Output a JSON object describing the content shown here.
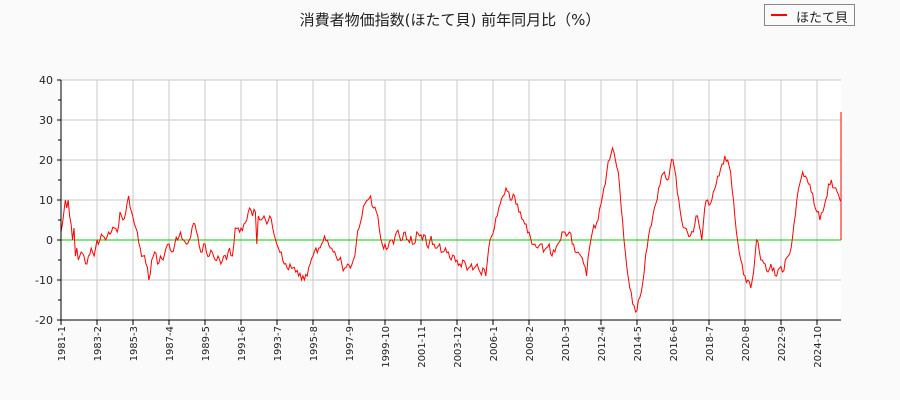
{
  "chart_data": {
    "type": "line",
    "title": "消費者物価指数(ほたて貝) 前年同月比（%）",
    "xlabel": "",
    "ylabel": "",
    "ylim": [
      -20,
      40
    ],
    "yticks": [
      40,
      30,
      20,
      10,
      0,
      -10,
      -20
    ],
    "xtick_labels": [
      "1981-1",
      "1983-2",
      "1985-3",
      "1987-4",
      "1989-5",
      "1991-6",
      "1993-7",
      "1995-8",
      "1997-9",
      "1999-10",
      "2001-11",
      "2003-12",
      "2006-1",
      "2008-2",
      "2010-3",
      "2012-4",
      "2014-5",
      "2016-6",
      "2018-7",
      "2020-8",
      "2022-9",
      "2024-10"
    ],
    "grid": true,
    "legend": {
      "position": "top-right",
      "entries": [
        "ほたて貝"
      ]
    },
    "reference_line": {
      "y": 0,
      "color": "#00cc00"
    },
    "series": [
      {
        "name": "ほたて貝",
        "color": "#ff0000",
        "points_month_value": [
          [
            0,
            2
          ],
          [
            1,
            4
          ],
          [
            2,
            7
          ],
          [
            3,
            10
          ],
          [
            4,
            8
          ],
          [
            5,
            10
          ],
          [
            6,
            6
          ],
          [
            7,
            4
          ],
          [
            8,
            0
          ],
          [
            9,
            3
          ],
          [
            10,
            -4
          ],
          [
            11,
            -2
          ],
          [
            12,
            -5
          ],
          [
            14,
            -3
          ],
          [
            16,
            -4
          ],
          [
            18,
            -6
          ],
          [
            19,
            -4
          ],
          [
            21,
            -2
          ],
          [
            23,
            -4
          ],
          [
            25,
            0
          ],
          [
            27,
            0
          ],
          [
            29,
            1
          ],
          [
            31,
            0
          ],
          [
            33,
            2
          ],
          [
            35,
            2
          ],
          [
            37,
            3
          ],
          [
            39,
            2
          ],
          [
            41,
            7
          ],
          [
            43,
            5
          ],
          [
            45,
            7
          ],
          [
            47,
            11
          ],
          [
            49,
            7
          ],
          [
            51,
            4
          ],
          [
            53,
            2
          ],
          [
            55,
            -2
          ],
          [
            57,
            -4
          ],
          [
            59,
            -6
          ],
          [
            61,
            -10
          ],
          [
            63,
            -5
          ],
          [
            65,
            -3
          ],
          [
            67,
            -6
          ],
          [
            69,
            -4
          ],
          [
            71,
            -5
          ],
          [
            73,
            -2
          ],
          [
            75,
            -1
          ],
          [
            77,
            -3
          ],
          [
            79,
            -1
          ],
          [
            81,
            0
          ],
          [
            83,
            2
          ],
          [
            85,
            0
          ],
          [
            87,
            -1
          ],
          [
            89,
            0
          ],
          [
            91,
            3
          ],
          [
            93,
            4
          ],
          [
            95,
            1
          ],
          [
            97,
            -3
          ],
          [
            99,
            -1
          ],
          [
            101,
            -3
          ],
          [
            103,
            -4
          ],
          [
            105,
            -3
          ],
          [
            107,
            -5
          ],
          [
            109,
            -4
          ],
          [
            111,
            -6
          ],
          [
            113,
            -4
          ],
          [
            115,
            -5
          ],
          [
            117,
            -2
          ],
          [
            119,
            -4
          ],
          [
            121,
            3
          ],
          [
            123,
            3
          ],
          [
            125,
            3
          ],
          [
            127,
            4
          ],
          [
            129,
            5
          ],
          [
            131,
            8
          ],
          [
            133,
            6
          ],
          [
            135,
            7
          ],
          [
            136,
            -1
          ],
          [
            137,
            6
          ],
          [
            139,
            5
          ],
          [
            141,
            6
          ],
          [
            143,
            4
          ],
          [
            145,
            6
          ],
          [
            147,
            3
          ],
          [
            149,
            0
          ],
          [
            151,
            -2
          ],
          [
            153,
            -3
          ],
          [
            155,
            -6
          ],
          [
            157,
            -7
          ],
          [
            159,
            -6
          ],
          [
            161,
            -7
          ],
          [
            163,
            -8
          ],
          [
            165,
            -9
          ],
          [
            167,
            -10
          ],
          [
            169,
            -10
          ],
          [
            171,
            -9
          ],
          [
            173,
            -6
          ],
          [
            175,
            -4
          ],
          [
            177,
            -2
          ],
          [
            179,
            -2
          ],
          [
            181,
            -1
          ],
          [
            183,
            1
          ],
          [
            185,
            0
          ],
          [
            187,
            -2
          ],
          [
            189,
            -3
          ],
          [
            191,
            -4
          ],
          [
            193,
            -5
          ],
          [
            195,
            -6
          ],
          [
            197,
            -7
          ],
          [
            199,
            -6
          ],
          [
            201,
            -7
          ],
          [
            203,
            -5
          ],
          [
            205,
            -1
          ],
          [
            207,
            3
          ],
          [
            209,
            6
          ],
          [
            211,
            9
          ],
          [
            213,
            10
          ],
          [
            215,
            11
          ],
          [
            217,
            8
          ],
          [
            219,
            7
          ],
          [
            221,
            3
          ],
          [
            223,
            -1
          ],
          [
            225,
            -1
          ],
          [
            227,
            -2
          ],
          [
            229,
            0
          ],
          [
            231,
            -1
          ],
          [
            233,
            2
          ],
          [
            235,
            1
          ],
          [
            237,
            0
          ],
          [
            239,
            2
          ],
          [
            241,
            0
          ],
          [
            243,
            1
          ],
          [
            245,
            -1
          ],
          [
            247,
            2
          ],
          [
            249,
            1
          ],
          [
            251,
            0
          ],
          [
            253,
            1
          ],
          [
            255,
            -2
          ],
          [
            257,
            1
          ],
          [
            259,
            -1
          ],
          [
            261,
            -2
          ],
          [
            263,
            -1
          ],
          [
            265,
            -3
          ],
          [
            267,
            -2
          ],
          [
            269,
            -3
          ],
          [
            271,
            -5
          ],
          [
            273,
            -4
          ],
          [
            275,
            -5
          ],
          [
            277,
            -6
          ],
          [
            279,
            -5
          ],
          [
            281,
            -6
          ],
          [
            283,
            -7
          ],
          [
            285,
            -6
          ],
          [
            287,
            -7
          ],
          [
            289,
            -6
          ],
          [
            291,
            -8
          ],
          [
            293,
            -7
          ],
          [
            295,
            -9
          ],
          [
            297,
            -2
          ],
          [
            299,
            1
          ],
          [
            301,
            3
          ],
          [
            303,
            6
          ],
          [
            305,
            9
          ],
          [
            307,
            11
          ],
          [
            309,
            13
          ],
          [
            311,
            12
          ],
          [
            313,
            10
          ],
          [
            315,
            11
          ],
          [
            317,
            9
          ],
          [
            319,
            7
          ],
          [
            321,
            5
          ],
          [
            323,
            4
          ],
          [
            325,
            2
          ],
          [
            327,
            -1
          ],
          [
            329,
            -1
          ],
          [
            331,
            -2
          ],
          [
            333,
            -1
          ],
          [
            335,
            -3
          ],
          [
            337,
            -2
          ],
          [
            339,
            -1
          ],
          [
            341,
            -4
          ],
          [
            343,
            -3
          ],
          [
            345,
            -1
          ],
          [
            347,
            0
          ],
          [
            349,
            2
          ],
          [
            351,
            1
          ],
          [
            353,
            2
          ],
          [
            355,
            -1
          ],
          [
            357,
            -3
          ],
          [
            359,
            -3
          ],
          [
            361,
            -4
          ],
          [
            363,
            -6
          ],
          [
            365,
            -9
          ],
          [
            367,
            -2
          ],
          [
            369,
            2
          ],
          [
            371,
            3
          ],
          [
            373,
            5
          ],
          [
            375,
            9
          ],
          [
            377,
            13
          ],
          [
            379,
            17
          ],
          [
            381,
            20
          ],
          [
            383,
            23
          ],
          [
            385,
            20
          ],
          [
            387,
            17
          ],
          [
            389,
            8
          ],
          [
            391,
            0
          ],
          [
            393,
            -7
          ],
          [
            395,
            -12
          ],
          [
            397,
            -16
          ],
          [
            399,
            -18
          ],
          [
            401,
            -15
          ],
          [
            403,
            -13
          ],
          [
            405,
            -8
          ],
          [
            407,
            -2
          ],
          [
            409,
            3
          ],
          [
            411,
            6
          ],
          [
            413,
            9
          ],
          [
            415,
            13
          ],
          [
            417,
            16
          ],
          [
            419,
            17
          ],
          [
            421,
            15
          ],
          [
            423,
            18
          ],
          [
            425,
            20
          ],
          [
            427,
            16
          ],
          [
            429,
            10
          ],
          [
            431,
            5
          ],
          [
            433,
            3
          ],
          [
            435,
            2
          ],
          [
            437,
            1
          ],
          [
            439,
            2
          ],
          [
            441,
            6
          ],
          [
            443,
            4
          ],
          [
            445,
            0
          ],
          [
            447,
            8
          ],
          [
            449,
            10
          ],
          [
            451,
            9
          ],
          [
            453,
            12
          ],
          [
            455,
            14
          ],
          [
            457,
            16
          ],
          [
            459,
            19
          ],
          [
            461,
            21
          ],
          [
            463,
            20
          ],
          [
            465,
            17
          ],
          [
            467,
            10
          ],
          [
            469,
            2
          ],
          [
            471,
            -3
          ],
          [
            473,
            -6
          ],
          [
            475,
            -9
          ],
          [
            477,
            -10
          ],
          [
            479,
            -12
          ],
          [
            481,
            -8
          ],
          [
            483,
            0
          ],
          [
            485,
            -3
          ],
          [
            487,
            -5
          ],
          [
            489,
            -6
          ],
          [
            491,
            -8
          ],
          [
            493,
            -6
          ],
          [
            495,
            -7
          ],
          [
            497,
            -9
          ],
          [
            499,
            -7
          ],
          [
            501,
            -8
          ],
          [
            503,
            -5
          ],
          [
            505,
            -4
          ],
          [
            507,
            -2
          ],
          [
            509,
            4
          ],
          [
            511,
            10
          ],
          [
            513,
            14
          ],
          [
            515,
            17
          ],
          [
            517,
            16
          ],
          [
            519,
            14
          ],
          [
            521,
            12
          ],
          [
            523,
            9
          ],
          [
            525,
            7
          ],
          [
            527,
            5
          ],
          [
            529,
            7
          ],
          [
            531,
            10
          ],
          [
            533,
            14
          ],
          [
            535,
            15
          ],
          [
            537,
            13
          ],
          [
            539,
            12
          ],
          [
            541,
            10
          ],
          [
            543,
            7
          ],
          [
            545,
            5
          ],
          [
            547,
            2
          ],
          [
            549,
            0
          ],
          [
            551,
            2
          ],
          [
            553,
            5
          ],
          [
            555,
            3
          ],
          [
            557,
            6
          ],
          [
            559,
            10
          ],
          [
            561,
            18
          ],
          [
            563,
            24
          ],
          [
            565,
            29
          ],
          [
            567,
            32
          ],
          [
            568,
            28
          ],
          [
            570,
            31
          ],
          [
            571,
            32
          ]
        ]
      }
    ]
  }
}
